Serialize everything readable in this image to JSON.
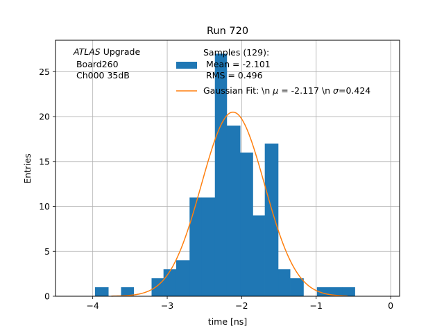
{
  "chart_data": {
    "type": "bar",
    "title": "Run 720",
    "xlabel": "time [ns]",
    "ylabel": "Entries",
    "xlim": [
      -4.5,
      0.12
    ],
    "ylim": [
      0,
      28.5
    ],
    "xticks": [
      -4,
      -3,
      -2,
      -1,
      0
    ],
    "xtick_labels": [
      "−4",
      "−3",
      "−2",
      "−1",
      "0"
    ],
    "yticks": [
      0,
      5,
      10,
      15,
      20,
      25
    ],
    "ytick_labels": [
      "0",
      "5",
      "10",
      "15",
      "20",
      "25"
    ],
    "grid": true,
    "legend_position": "top-right",
    "annotation": {
      "line1_italic": "ATLAS",
      "line1_rest": " Upgrade",
      "line2": " Board260",
      "line3": " Ch000 35dB"
    },
    "histogram": {
      "name_lines": [
        "Samples (129):",
        " Mean = -2.101",
        " RMS = 0.496"
      ],
      "color": "#1f77b4",
      "bins": [
        {
          "x0": -3.97,
          "x1": -3.79,
          "count": 1
        },
        {
          "x0": -3.62,
          "x1": -3.45,
          "count": 1
        },
        {
          "x0": -3.21,
          "x1": -3.05,
          "count": 2
        },
        {
          "x0": -3.05,
          "x1": -2.88,
          "count": 3
        },
        {
          "x0": -2.88,
          "x1": -2.7,
          "count": 4
        },
        {
          "x0": -2.7,
          "x1": -2.54,
          "count": 11
        },
        {
          "x0": -2.54,
          "x1": -2.36,
          "count": 11
        },
        {
          "x0": -2.36,
          "x1": -2.2,
          "count": 27
        },
        {
          "x0": -2.2,
          "x1": -2.02,
          "count": 19
        },
        {
          "x0": -2.02,
          "x1": -1.85,
          "count": 16
        },
        {
          "x0": -1.85,
          "x1": -1.69,
          "count": 9
        },
        {
          "x0": -1.69,
          "x1": -1.51,
          "count": 17
        },
        {
          "x0": -1.51,
          "x1": -1.35,
          "count": 3
        },
        {
          "x0": -1.35,
          "x1": -1.17,
          "count": 2
        },
        {
          "x0": -0.99,
          "x1": -0.83,
          "count": 1
        },
        {
          "x0": -0.83,
          "x1": -0.65,
          "count": 1
        },
        {
          "x0": -0.65,
          "x1": -0.48,
          "count": 1
        }
      ]
    },
    "fit": {
      "name": "Gaussian Fit: \\n μ = -2.117 \\n σ=0.424",
      "name_prefix": "Gaussian Fit: \\n ",
      "name_mu": "μ",
      "name_mid": " = -2.117 \\n ",
      "name_sigma": "σ",
      "name_end": "=0.424",
      "color": "#ff7f0e",
      "mu": -2.117,
      "sigma": 0.424,
      "amplitude": 20.5,
      "x_range": [
        -3.75,
        -0.58
      ]
    }
  }
}
